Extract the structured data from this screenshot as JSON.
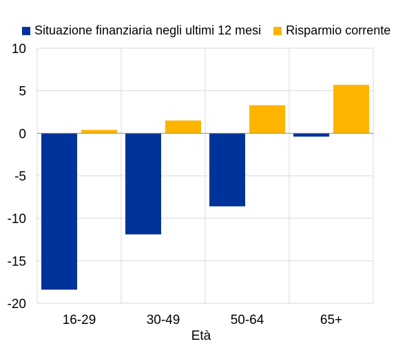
{
  "chart_data": {
    "type": "bar",
    "xlabel": "Età",
    "ylabel": "",
    "categories": [
      "16-29",
      "30-49",
      "50-64",
      "65+"
    ],
    "series": [
      {
        "name": "Situazione finanziaria negli ultimi 12 mesi",
        "color": "#003399",
        "values": [
          -18.4,
          -11.9,
          -8.6,
          -0.4
        ]
      },
      {
        "name": "Risparmio corrente",
        "color": "#FFB400",
        "values": [
          0.4,
          1.5,
          3.3,
          5.7
        ]
      }
    ],
    "ylim": [
      -20,
      10
    ],
    "yticks": [
      "10",
      "5",
      "0",
      "-5",
      "-10",
      "-15",
      "-20"
    ],
    "grid": true,
    "legend_position": "top"
  }
}
